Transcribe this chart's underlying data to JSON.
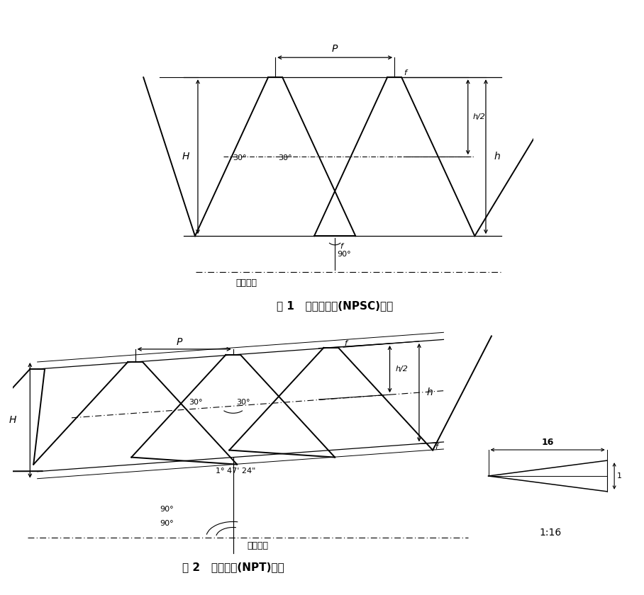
{
  "fig1_title": "图 1   圆柱内螺纹(NPSC)牙型",
  "fig2_title": "图 2   圆锥螺纹(NPT)牙型",
  "bg_color": "#ffffff",
  "lc": "#000000",
  "label_P": "P",
  "label_H": "H",
  "label_h": "h",
  "label_h2": "h/2",
  "label_f": "f",
  "label_30a": "30°",
  "label_30b": "30°",
  "label_90": "90°",
  "label_axis": "螺纹轴线",
  "label_angle_npt": "1° 47' 24\"",
  "label_1_16": "1:16",
  "label_16": "16",
  "label_1": "1"
}
